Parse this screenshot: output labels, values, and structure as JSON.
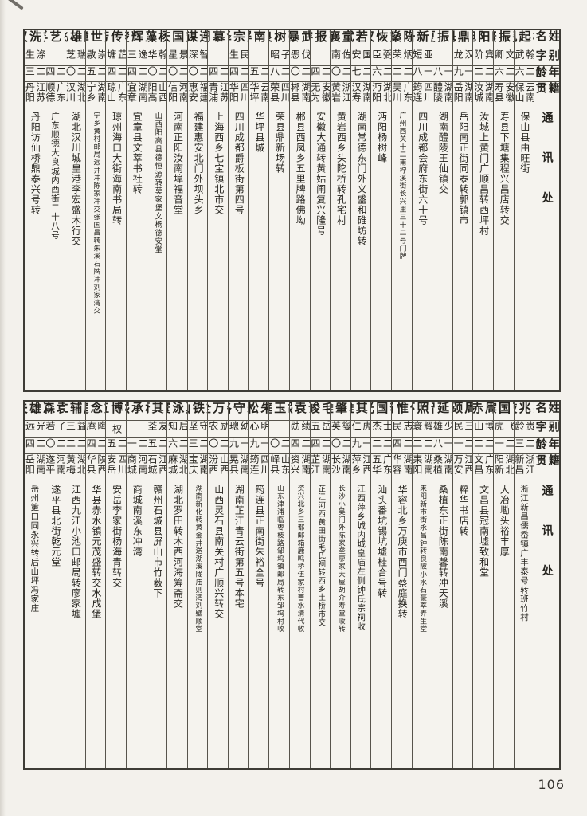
{
  "page": {
    "number": "106"
  },
  "headers": {
    "name": "姓名",
    "courtesy": "别字",
    "age": "年龄",
    "origin": "籍贯",
    "address": "通讯处"
  },
  "tables": [
    {
      "entries": [
        {
          "name": "杨起凤",
          "courtesy": "翰武",
          "age": "二六",
          "origin": "云南保山",
          "address": "保山县由旺街"
        },
        {
          "name": "费振寰",
          "courtesy": "文卿",
          "age": "二六",
          "origin": "安徽寿县",
          "address": "寿县下塘集程兴昌店转交"
        },
        {
          "name": "欧阳旭",
          "courtesy": "宾阶",
          "age": "二二",
          "origin": "湖南汝城",
          "address": "汝城上黄门广顺昌转西坪村"
        },
        {
          "name": "袁鼎魁",
          "courtesy": "汉龙",
          "age": "一九",
          "origin": "湖南岳阳",
          "address": "岳阳南正街同泰转郭镇市"
        },
        {
          "name": "张振夏",
          "courtesy": "",
          "age": "一八",
          "origin": "湖南醴陵",
          "address": "湖南醴陵王仙镇交"
        },
        {
          "name": "廖新枡",
          "courtesy": "亚短",
          "age": "一八",
          "origin": "四川筠连",
          "address": "四川成都会府东街六十号"
        },
        {
          "name": "陈燊",
          "courtesy": "炳荣",
          "age": "二二",
          "origin": "广东吴川",
          "address": "广州西关十二甫柠溪街长兴里三十二号门牌"
        },
        {
          "name": "刘恢汉",
          "courtesy": "弼臣",
          "age": "二六",
          "origin": "湖北沔阳",
          "address": "沔阳杨树峰"
        },
        {
          "name": "李若斌",
          "courtesy": "国安",
          "age": "二七",
          "origin": "湖南汉寿",
          "address": "湖南常德东门外义盛和碓坊转"
        },
        {
          "name": "童襄",
          "courtesy": "佐南",
          "age": "二〇",
          "origin": "浙江黄岩",
          "address": "黄岩西乡头陀桥转孔宅村"
        },
        {
          "name": "张报睿",
          "courtesy": "",
          "age": "二四",
          "origin": "安徽无为",
          "address": "安徽大通转黄姑闸复兴隆号"
        },
        {
          "name": "武暴",
          "courtesy": "伐恶",
          "age": "二〇",
          "origin": "湖南郴县",
          "address": "郴县西凤乡五里牌路佛坳"
        },
        {
          "name": "张树良",
          "courtesy": "子昭",
          "age": "二八",
          "origin": "四川荣县",
          "address": "荣县鼎新场转"
        },
        {
          "name": "李南屏",
          "courtesy": "",
          "age": "二五",
          "origin": "云南华坪",
          "address": "华坪县城"
        },
        {
          "name": "廖宗泽",
          "courtesy": "民生",
          "age": "二四",
          "origin": "四川华阳",
          "address": "四川成都爵板街第四号"
        },
        {
          "name": "俞慕周",
          "courtesy": "",
          "age": "二四",
          "origin": "江苏青浦",
          "address": "上海西乡七宝镇北市交"
        },
        {
          "name": "连谋",
          "courtesy": "智深",
          "age": "二〇",
          "origin": "福建惠安",
          "address": "福建惠安北门外坝头乡"
        },
        {
          "name": "刘国庆",
          "courtesy": "景星",
          "age": "二〇",
          "origin": "河南信阳",
          "address": "河南正阳汝南埠福音堂"
        },
        {
          "name": "杨藻",
          "courtesy": "翰华",
          "age": "二〇",
          "origin": "山西阳高",
          "address": "山西阳高县德恒源转莫家堡文杨德安堂"
        },
        {
          "name": "王辉楚",
          "courtesy": "逸三",
          "age": "二四",
          "origin": "湖南宜章",
          "address": "宜章县文萃书社转"
        },
        {
          "name": "李传芳",
          "courtesy": "芷塘",
          "age": "二四",
          "origin": "广东琼山",
          "address": "琼州海口大街海南书局转"
        },
        {
          "name": "刘世璋",
          "courtesy": "崇敭",
          "age": "二五",
          "origin": "湖南宁乡",
          "address": "宁乡黄村邮局远井冲陈家冲交张国昌转朱溪石牌冲刘家湾交"
        },
        {
          "name": "陈雄飞",
          "courtesy": "瑞芝",
          "age": "二〇",
          "origin": "湖北汉川",
          "address": "湖北汉川城皇港李宏盛木行交"
        },
        {
          "name": "罗艺孚",
          "courtesy": "",
          "age": "二四",
          "origin": "广东顺德",
          "address": "广东顺德大良城内西街二十八号"
        },
        {
          "name": "刘洗汉",
          "courtesy": "涤生",
          "age": "二三",
          "origin": "江苏丹阳",
          "address": "丹阳访仙桥鼎泰兴号转"
        }
      ]
    },
    {
      "entries": [
        {
          "name": "张兆歧",
          "courtesy": "贵龄",
          "age": "二三",
          "origin": "浙江新昌",
          "address": "浙江新昌儒岙镇广丰泰号转班竹村"
        },
        {
          "name": "曹国瑸",
          "courtesy": "飞虎",
          "age": "二一",
          "origin": "湖北阳新",
          "address": "大冶墈头裕丰厚"
        },
        {
          "name": "周赤",
          "courtesy": "博山",
          "age": "二二",
          "origin": "广东文昌",
          "address": "文昌县冠南墟致和堂"
        },
        {
          "name": "周颂",
          "courtesy": "三民",
          "age": "二一",
          "origin": "江西万安",
          "address": "粹华书店转"
        },
        {
          "name": "余延智",
          "courtesy": "少雄",
          "age": "一八",
          "origin": "湖南桑植",
          "address": "桑植东正街陈南馨转冲天溪"
        },
        {
          "name": "谢照环",
          "courtesy": "耀寰",
          "age": "二二",
          "origin": "湖南耒阳",
          "address": "耒阳新市街永昌钟转良陂小水石豪萃养生堂"
        },
        {
          "name": "傅惟肖",
          "courtesy": "志民",
          "age": "二四",
          "origin": "湖南华容",
          "address": "华容北乡万庾市西门蔡庭换转"
        },
        {
          "name": "李国光",
          "courtesy": "士杰",
          "age": "二二",
          "origin": "广东五华",
          "address": "汕头番坑锡坑墟桂合号转"
        },
        {
          "name": "钟其雄",
          "courtesy": "虎仁",
          "age": "一九",
          "origin": "江西萍乡",
          "address": "江西萍乡城内城皇庙左侧钟氏宗祠收"
        },
        {
          "name": "袁肇雄",
          "courtesy": "燮英",
          "age": "二〇",
          "origin": "湖南长沙",
          "address": "长沙小吴门外陈家垄廖家大屋胡介寿堂收转"
        },
        {
          "name": "毛峻",
          "courtesy": "岳五",
          "age": "二四",
          "origin": "湖南芷江",
          "address": "芷江河西黄田街毛氏祠转西乡土桥市交"
        },
        {
          "name": "谢袁熙",
          "courtesy": "绩勋",
          "age": "二四",
          "origin": "湖南资兴",
          "address": "资兴北乡三都邮箱鹿鸣桥伍家村曹水清代收"
        },
        {
          "name": "胡玉庭",
          "courtesy": "",
          "age": "二〇",
          "origin": "山东峄县",
          "address": "山东津浦临枣枝路邹坞镇邮局转东邹坞村收"
        },
        {
          "name": "朱松",
          "courtesy": "明心",
          "age": "一九",
          "origin": "四川筠连",
          "address": "筠连县正南街朱裕全号"
        },
        {
          "name": "朱守恪",
          "courtesy": "幼璁",
          "age": "一九",
          "origin": "湖南晃县",
          "address": "湖南芷江青云街第五号本宅"
        },
        {
          "name": "牛万全",
          "courtesy": "励农",
          "age": "二〇",
          "origin": "山西汾西",
          "address": "山西灵石县南关村广顺兴转交"
        },
        {
          "name": "刘铁山",
          "courtesy": "守坚",
          "age": "二三",
          "origin": "湖南宝庆",
          "address": "湖南新化转黄金井送湖溪陇庙则湾刘壁顺堂"
        },
        {
          "name": "夏泳寰",
          "courtesy": "后知",
          "age": "二六",
          "origin": "湖北麻城",
          "address": "湖北罗田转木西河海筹斋交"
        },
        {
          "name": "陈其蔚",
          "courtesy": "友荃",
          "age": "二五",
          "origin": "江西石城",
          "address": "赣州石城县屏山市竹薮下"
        },
        {
          "name": "林承熙",
          "courtesy": "",
          "age": "二一",
          "origin": "河南商城",
          "address": "商城南溪东冲湾"
        },
        {
          "name": "杨博五",
          "courtesy": "权",
          "age": "二五",
          "origin": "四川安岳",
          "address": "安岳李家街杨海青转交"
        },
        {
          "name": "刘念庭",
          "courtesy": "晦庵",
          "age": "二四",
          "origin": "陕西华县",
          "address": "华县赤水镇元茂盛转交水成堡"
        },
        {
          "name": "廖辅仁",
          "courtesy": "益三",
          "age": "二二",
          "origin": "湖北黄梅",
          "address": "江西九江小池口邮局转廖家墟"
        },
        {
          "name": "袁森",
          "courtesy": "子若",
          "age": "二〇",
          "origin": "河南遂平",
          "address": "遂平县北街乾元堂"
        },
        {
          "name": "冯雄夫",
          "courtesy": "光远",
          "age": "二四",
          "origin": "湖南岳阳",
          "address": "岳州筻口同永兴转后山坪冯家庄"
        }
      ]
    }
  ]
}
